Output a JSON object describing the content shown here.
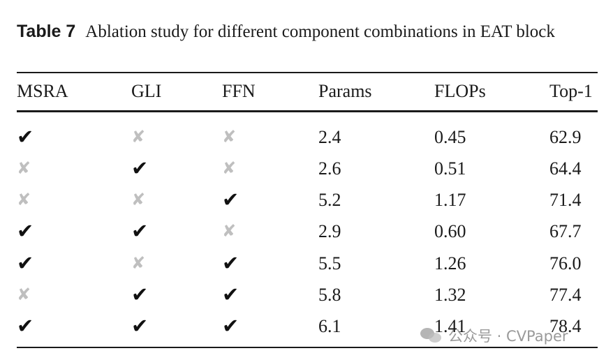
{
  "caption": {
    "label": "Table 7",
    "text": "Ablation study for different component combinations in EAT block"
  },
  "table": {
    "headers": [
      "MSRA",
      "GLI",
      "FFN",
      "Params",
      "FLOPs",
      "Top-1"
    ],
    "rows": [
      {
        "MSRA": true,
        "GLI": false,
        "FFN": false,
        "Params": "2.4",
        "FLOPs": "0.45",
        "Top1": "62.9"
      },
      {
        "MSRA": false,
        "GLI": true,
        "FFN": false,
        "Params": "2.6",
        "FLOPs": "0.51",
        "Top1": "64.4"
      },
      {
        "MSRA": false,
        "GLI": false,
        "FFN": true,
        "Params": "5.2",
        "FLOPs": "1.17",
        "Top1": "71.4"
      },
      {
        "MSRA": true,
        "GLI": true,
        "FFN": false,
        "Params": "2.9",
        "FLOPs": "0.60",
        "Top1": "67.7"
      },
      {
        "MSRA": true,
        "GLI": false,
        "FFN": true,
        "Params": "5.5",
        "FLOPs": "1.26",
        "Top1": "76.0"
      },
      {
        "MSRA": false,
        "GLI": true,
        "FFN": true,
        "Params": "5.8",
        "FLOPs": "1.32",
        "Top1": "77.4"
      },
      {
        "MSRA": true,
        "GLI": true,
        "FFN": true,
        "Params": "6.1",
        "FLOPs": "1.41",
        "Top1": "78.4"
      }
    ]
  },
  "symbols": {
    "check": "✔",
    "cross": "✘"
  },
  "colors": {
    "check": "#111111",
    "cross": "#bfbfbf"
  },
  "watermark": {
    "text": "公众号 · CVPaper"
  }
}
